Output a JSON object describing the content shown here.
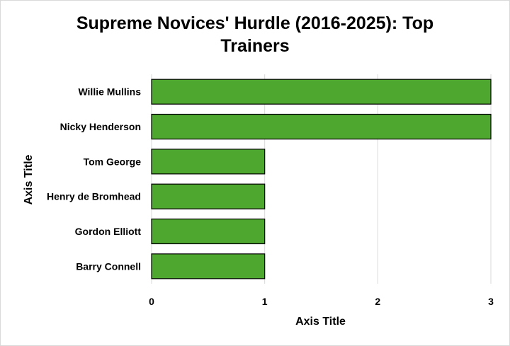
{
  "chart_data": {
    "type": "bar",
    "orientation": "horizontal",
    "title": "Supreme Novices' Hurdle (2016-2025): Top Trainers",
    "title_lines": [
      "Supreme Novices' Hurdle (2016-2025): Top",
      "Trainers"
    ],
    "categories": [
      "Willie Mullins",
      "Nicky Henderson",
      "Tom George",
      "Henry de Bromhead",
      "Gordon Elliott",
      "Barry Connell"
    ],
    "values": [
      3,
      3,
      1,
      1,
      1,
      1
    ],
    "xlabel": "Axis Title",
    "ylabel": "Axis Title",
    "xlim": [
      0,
      3
    ],
    "xticks": [
      "0",
      "1",
      "2",
      "3"
    ],
    "grid": true,
    "bar_color": "#4ea72e",
    "bar_edge_color": "#000000"
  }
}
